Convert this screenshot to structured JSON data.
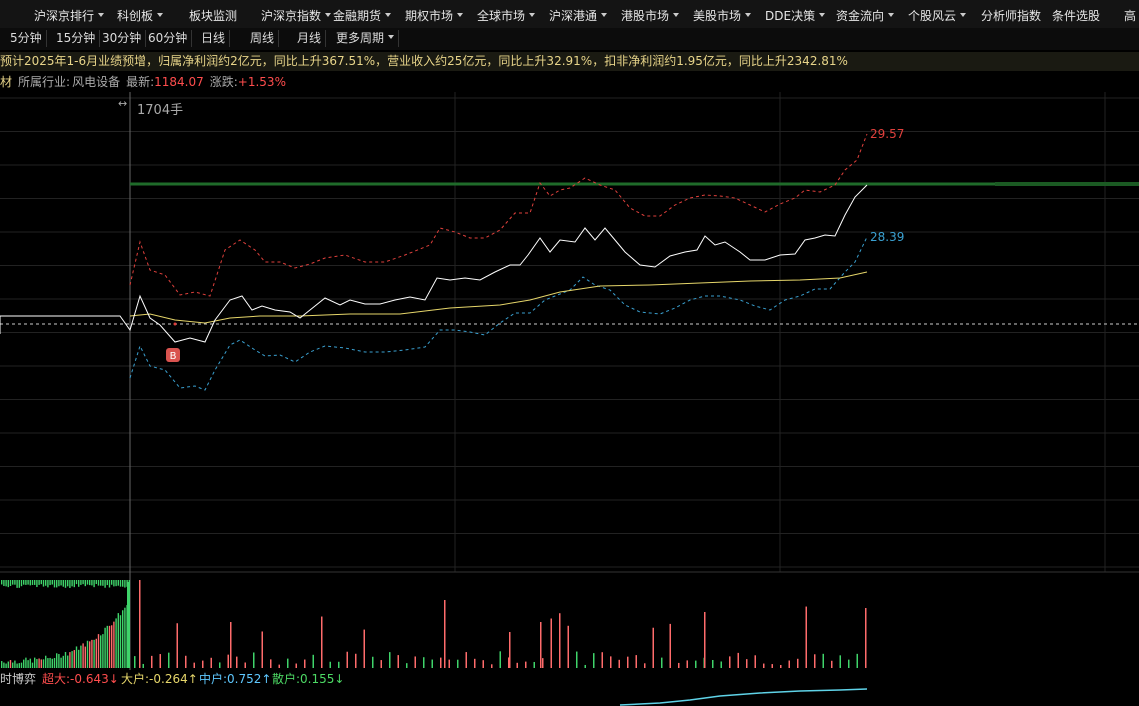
{
  "menu": [
    "沪深京排行",
    "科创板",
    "板块监测",
    "沪深京指数",
    "金融期货",
    "期权市场",
    "全球市场",
    "沪深港通",
    "港股市场",
    "美股市场",
    "DDE决策",
    "资金流向",
    "个股风云",
    "分析师指数",
    "条件选股",
    "高"
  ],
  "periods": [
    "5分钟",
    "15分钟",
    "30分钟",
    "60分钟",
    "日线",
    "周线",
    "月线",
    "更多周期"
  ],
  "news": "预计2025年1-6月业绩预增，归属净利润约2亿元，同比上升367.51%，营业收入约25亿元，同比上升32.91%，扣非净利润约1.95亿元，同比上升2342.81%",
  "info": {
    "stock_name_fragment": "材",
    "industry_label": "所属行业:",
    "industry": "风电设备",
    "latest_label": "最新:",
    "latest": "1184.07",
    "change_label": "涨跌:",
    "change": "+1.53%"
  },
  "chart": {
    "volume_label": "1704手",
    "upper_label": "29.57",
    "lower_label": "28.39",
    "marker": "B"
  },
  "indicators": {
    "title_fragment": "时博弈",
    "items": [
      "超大:-0.643↓",
      "大户:-0.264↑",
      "中户:0.752↑",
      "散户:0.155↓"
    ]
  }
}
